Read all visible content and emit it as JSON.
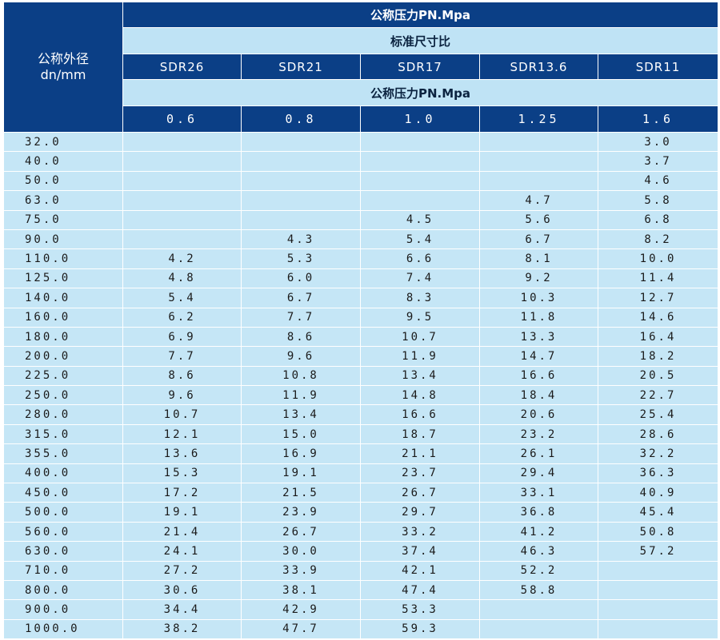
{
  "header": {
    "corner_line1": "公称外径",
    "corner_line2": "dn/mm",
    "pressure_title": "公称压力PN.Mpa",
    "sdr_title": "标准尺寸比",
    "sdr_values": [
      "SDR26",
      "SDR21",
      "SDR17",
      "SDR13.6",
      "SDR11"
    ],
    "pressure_title_2": "公称压力PN.Mpa",
    "pressure_values": [
      "0.6",
      "0.8",
      "1.0",
      "1.25",
      "1.6"
    ]
  },
  "rows": [
    {
      "dn": "32.0",
      "v": [
        "",
        "",
        "",
        "",
        "3.0"
      ]
    },
    {
      "dn": "40.0",
      "v": [
        "",
        "",
        "",
        "",
        "3.7"
      ]
    },
    {
      "dn": "50.0",
      "v": [
        "",
        "",
        "",
        "",
        "4.6"
      ]
    },
    {
      "dn": "63.0",
      "v": [
        "",
        "",
        "",
        "4.7",
        "5.8"
      ]
    },
    {
      "dn": "75.0",
      "v": [
        "",
        "",
        "4.5",
        "5.6",
        "6.8"
      ]
    },
    {
      "dn": "90.0",
      "v": [
        "",
        "4.3",
        "5.4",
        "6.7",
        "8.2"
      ]
    },
    {
      "dn": "110.0",
      "v": [
        "4.2",
        "5.3",
        "6.6",
        "8.1",
        "10.0"
      ]
    },
    {
      "dn": "125.0",
      "v": [
        "4.8",
        "6.0",
        "7.4",
        "9.2",
        "11.4"
      ]
    },
    {
      "dn": "140.0",
      "v": [
        "5.4",
        "6.7",
        "8.3",
        "10.3",
        "12.7"
      ]
    },
    {
      "dn": "160.0",
      "v": [
        "6.2",
        "7.7",
        "9.5",
        "11.8",
        "14.6"
      ]
    },
    {
      "dn": "180.0",
      "v": [
        "6.9",
        "8.6",
        "10.7",
        "13.3",
        "16.4"
      ]
    },
    {
      "dn": "200.0",
      "v": [
        "7.7",
        "9.6",
        "11.9",
        "14.7",
        "18.2"
      ]
    },
    {
      "dn": "225.0",
      "v": [
        "8.6",
        "10.8",
        "13.4",
        "16.6",
        "20.5"
      ]
    },
    {
      "dn": "250.0",
      "v": [
        "9.6",
        "11.9",
        "14.8",
        "18.4",
        "22.7"
      ]
    },
    {
      "dn": "280.0",
      "v": [
        "10.7",
        "13.4",
        "16.6",
        "20.6",
        "25.4"
      ]
    },
    {
      "dn": "315.0",
      "v": [
        "12.1",
        "15.0",
        "18.7",
        "23.2",
        "28.6"
      ]
    },
    {
      "dn": "355.0",
      "v": [
        "13.6",
        "16.9",
        "21.1",
        "26.1",
        "32.2"
      ]
    },
    {
      "dn": "400.0",
      "v": [
        "15.3",
        "19.1",
        "23.7",
        "29.4",
        "36.3"
      ]
    },
    {
      "dn": "450.0",
      "v": [
        "17.2",
        "21.5",
        "26.7",
        "33.1",
        "40.9"
      ]
    },
    {
      "dn": "500.0",
      "v": [
        "19.1",
        "23.9",
        "29.7",
        "36.8",
        "45.4"
      ]
    },
    {
      "dn": "560.0",
      "v": [
        "21.4",
        "26.7",
        "33.2",
        "41.2",
        "50.8"
      ]
    },
    {
      "dn": "630.0",
      "v": [
        "24.1",
        "30.0",
        "37.4",
        "46.3",
        "57.2"
      ]
    },
    {
      "dn": "710.0",
      "v": [
        "27.2",
        "33.9",
        "42.1",
        "52.2",
        ""
      ]
    },
    {
      "dn": "800.0",
      "v": [
        "30.6",
        "38.1",
        "47.4",
        "58.8",
        ""
      ]
    },
    {
      "dn": "900.0",
      "v": [
        "34.4",
        "42.9",
        "53.3",
        "",
        ""
      ]
    },
    {
      "dn": "1000.0",
      "v": [
        "38.2",
        "47.7",
        "59.3",
        "",
        ""
      ]
    }
  ]
}
